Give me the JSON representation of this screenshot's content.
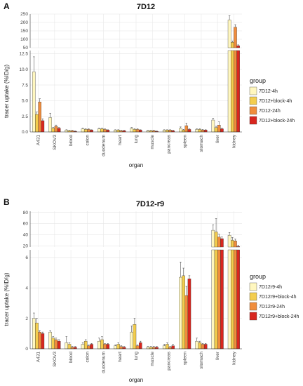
{
  "colors": {
    "s1": "#fff7bf",
    "s2": "#f3cd4e",
    "s3": "#f08d3c",
    "s4": "#d8261f",
    "grid": "#e6e6e6",
    "panel_bg": "#ffffff",
    "bar_stroke": "#333333"
  },
  "chart_data": [
    {
      "type": "bar",
      "panel_letter": "A",
      "title": "7D12",
      "xlabel": "organ",
      "ylabel": "tracer uptake (%ID/g)",
      "legend_title": "group",
      "legend_position": "right",
      "grid": true,
      "categories": [
        "A431",
        "SKOV3",
        "blood",
        "colon",
        "duodenum",
        "heart",
        "lung",
        "muscle",
        "pancreas",
        "spleen",
        "stomach",
        "liver",
        "kidney"
      ],
      "upper_ylim": [
        50,
        250
      ],
      "upper_ticks": [
        "50",
        "100",
        "150",
        "200",
        "250"
      ],
      "lower_ylim": [
        0,
        13
      ],
      "lower_ticks": [
        "0.0",
        "2.5",
        "5.0",
        "7.5",
        "10.0",
        "12.5"
      ],
      "series": [
        {
          "name": "7D12-4h",
          "values": [
            9.6,
            2.3,
            0.3,
            0.5,
            0.5,
            0.3,
            0.6,
            0.2,
            0.3,
            0.6,
            0.4,
            1.9,
            215
          ],
          "errors": [
            2.4,
            0.7,
            0.05,
            0.1,
            0.1,
            0.05,
            0.1,
            0.05,
            0.05,
            0.2,
            0.1,
            0.3,
            25
          ]
        },
        {
          "name": "7D12+block-4h",
          "values": [
            2.8,
            0.6,
            0.2,
            0.4,
            0.5,
            0.3,
            0.4,
            0.2,
            0.3,
            0.3,
            0.4,
            0.7,
            82
          ],
          "errors": [
            0.4,
            0.1,
            0.05,
            0.1,
            0.1,
            0.05,
            0.1,
            0.05,
            0.05,
            0.1,
            0.1,
            0.2,
            8
          ]
        },
        {
          "name": "7D12-24h",
          "values": [
            4.8,
            0.9,
            0.2,
            0.4,
            0.4,
            0.2,
            0.4,
            0.2,
            0.3,
            1.0,
            0.3,
            1.1,
            172
          ],
          "errors": [
            0.5,
            0.2,
            0.05,
            0.1,
            0.1,
            0.05,
            0.1,
            0.05,
            0.05,
            0.4,
            0.1,
            0.5,
            15
          ]
        },
        {
          "name": "7D12+block-24h",
          "values": [
            1.8,
            0.6,
            0.1,
            0.3,
            0.3,
            0.2,
            0.3,
            0.1,
            0.2,
            0.4,
            0.3,
            0.5,
            62
          ],
          "errors": [
            0.3,
            0.1,
            0.05,
            0.05,
            0.05,
            0.05,
            0.05,
            0.05,
            0.05,
            0.1,
            0.05,
            0.1,
            5
          ]
        }
      ]
    },
    {
      "type": "bar",
      "panel_letter": "B",
      "title": "7D12-r9",
      "xlabel": "organ",
      "ylabel": "tracer uptake (%ID/g)",
      "legend_title": "group",
      "legend_position": "right",
      "grid": true,
      "categories": [
        "A431",
        "SKOV3",
        "blood",
        "colon",
        "duodenum",
        "heart",
        "lung",
        "muscle",
        "pancreas",
        "spleen",
        "stomach",
        "liver",
        "kidney"
      ],
      "upper_ylim": [
        18,
        82
      ],
      "upper_ticks": [
        "20",
        "40",
        "60",
        "80"
      ],
      "lower_ylim": [
        0,
        6.5
      ],
      "lower_ticks": [
        "0",
        "2",
        "4",
        "6"
      ],
      "series": [
        {
          "name": "7D12r9-4h",
          "values": [
            2.0,
            1.1,
            0.4,
            0.3,
            0.5,
            0.2,
            1.1,
            0.1,
            0.2,
            4.7,
            0.5,
            48,
            39
          ],
          "errors": [
            0.35,
            0.1,
            0.4,
            0.1,
            0.2,
            0.05,
            0.4,
            0.05,
            0.1,
            1.0,
            0.2,
            10,
            5
          ]
        },
        {
          "name": "7D12r9+block-4h",
          "values": [
            1.7,
            0.7,
            0.3,
            0.5,
            0.6,
            0.3,
            1.6,
            0.1,
            0.3,
            4.8,
            0.4,
            45,
            30
          ],
          "errors": [
            0.3,
            0.1,
            0.1,
            0.1,
            0.2,
            0.1,
            0.4,
            0.05,
            0.1,
            0.5,
            0.1,
            24,
            5
          ]
        },
        {
          "name": "7D12r9-24h",
          "values": [
            1.1,
            0.6,
            0.1,
            0.2,
            0.3,
            0.15,
            0.2,
            0.1,
            0.1,
            3.5,
            0.3,
            36,
            29
          ],
          "errors": [
            0.1,
            0.1,
            0.05,
            0.05,
            0.05,
            0.05,
            0.05,
            0.05,
            0.05,
            0.6,
            0.05,
            5,
            3
          ]
        },
        {
          "name": "7D12r9+block-24h",
          "values": [
            1.0,
            0.5,
            0.1,
            0.3,
            0.3,
            0.1,
            0.4,
            0.1,
            0.2,
            4.6,
            0.3,
            33,
            19
          ],
          "errors": [
            0.1,
            0.1,
            0.05,
            0.05,
            0.05,
            0.05,
            0.1,
            0.05,
            0.1,
            0.2,
            0.05,
            3,
            2
          ]
        }
      ]
    }
  ]
}
